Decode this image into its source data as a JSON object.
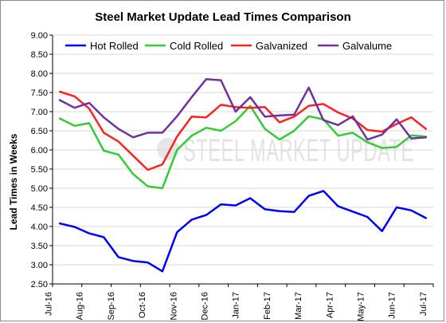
{
  "chart_data": {
    "type": "line",
    "title": "Steel Market Update Lead Times Comparison",
    "xlabel": "",
    "ylabel": "Lead Times in Weeks",
    "ylim": [
      2.5,
      9.0
    ],
    "yticks": [
      "2.50",
      "3.00",
      "3.50",
      "4.00",
      "4.50",
      "5.00",
      "5.50",
      "6.00",
      "6.50",
      "7.00",
      "7.50",
      "8.00",
      "8.50",
      "9.00"
    ],
    "xtick_labels": [
      "Jul-16",
      "Aug-16",
      "Sep-16",
      "Oct-16",
      "Nov-16",
      "Dec-16",
      "Jan-17",
      "Feb-17",
      "Mar-17",
      "Apr-17",
      "May-17",
      "Jun-17",
      "Jul-17"
    ],
    "grid": true,
    "legend_position": "top",
    "watermark": "STEEL MARKET UPDATE",
    "series": [
      {
        "name": "Hot Rolled",
        "color": "#0000ff",
        "values": [
          4.08,
          3.99,
          3.82,
          3.72,
          3.2,
          3.1,
          3.06,
          2.83,
          3.85,
          4.18,
          4.3,
          4.58,
          4.55,
          4.74,
          4.45,
          4.4,
          4.38,
          4.8,
          4.93,
          4.53,
          4.39,
          4.25,
          3.88,
          4.5,
          4.42,
          4.22
        ]
      },
      {
        "name": "Cold Rolled",
        "color": "#33cc33",
        "values": [
          6.82,
          6.63,
          6.7,
          5.98,
          5.88,
          5.37,
          5.05,
          5.0,
          6.0,
          6.37,
          6.58,
          6.5,
          6.75,
          7.15,
          6.55,
          6.27,
          6.5,
          6.88,
          6.8,
          6.37,
          6.45,
          6.2,
          6.05,
          6.08,
          6.38,
          6.35
        ]
      },
      {
        "name": "Galvanized",
        "color": "#ff2020",
        "values": [
          7.52,
          7.4,
          7.08,
          6.45,
          6.22,
          5.85,
          5.48,
          5.62,
          6.35,
          6.87,
          6.85,
          7.18,
          7.12,
          7.1,
          7.12,
          6.72,
          6.87,
          7.15,
          7.2,
          6.98,
          6.82,
          6.52,
          6.48,
          6.68,
          6.85,
          6.55
        ]
      },
      {
        "name": "Galvalume",
        "color": "#7030a0",
        "values": [
          7.3,
          7.1,
          7.23,
          6.85,
          6.55,
          6.33,
          6.45,
          6.45,
          6.88,
          7.38,
          7.85,
          7.82,
          7.0,
          7.38,
          6.87,
          6.9,
          6.92,
          7.63,
          6.78,
          6.65,
          6.88,
          6.27,
          6.4,
          6.8,
          6.3,
          6.33
        ]
      }
    ]
  }
}
